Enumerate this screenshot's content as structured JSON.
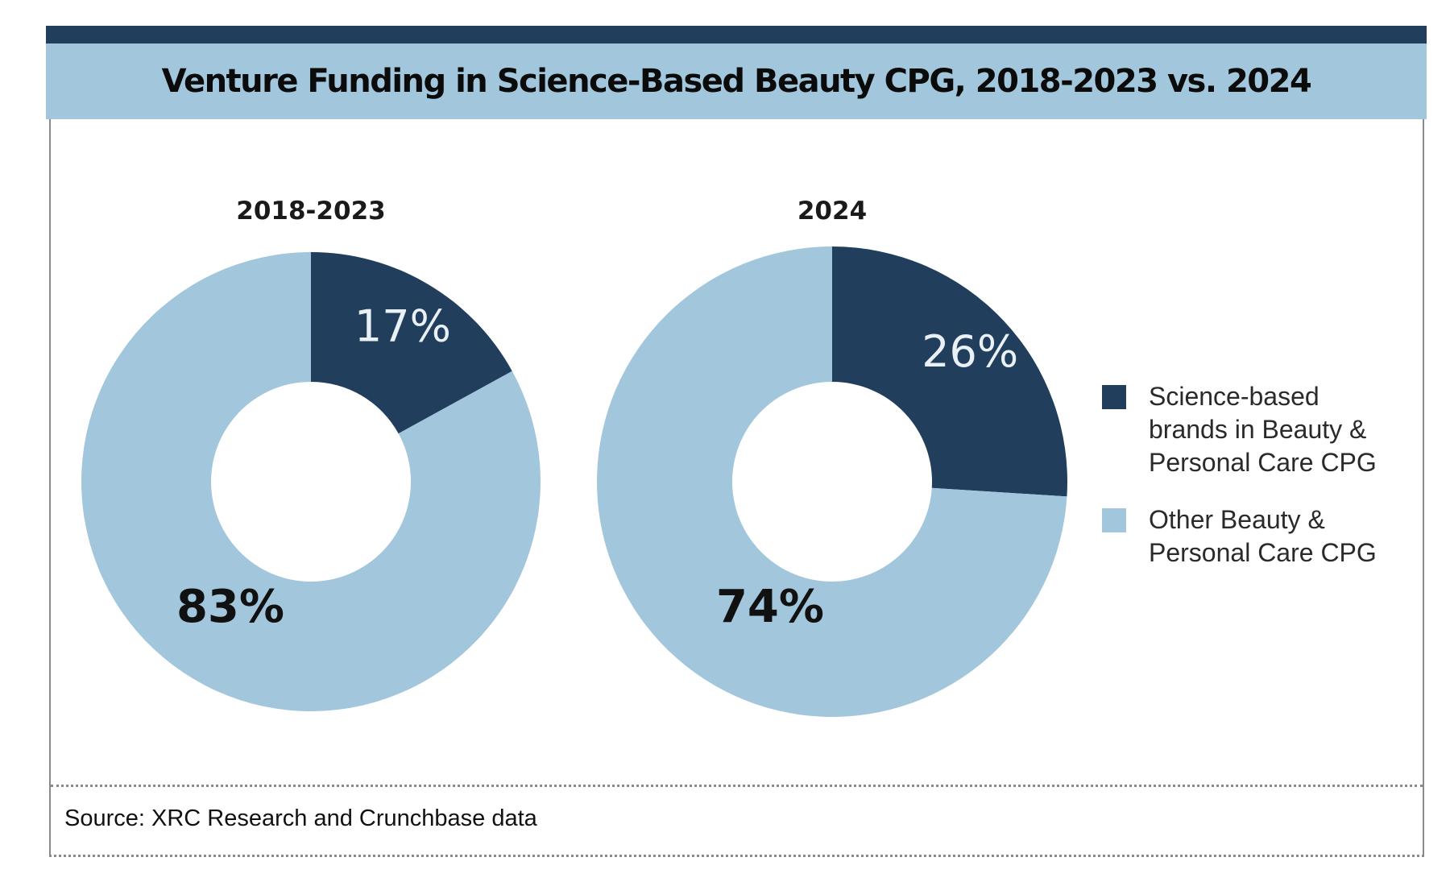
{
  "header": {
    "title": "Venture Funding in Science-Based Beauty CPG, 2018-2023 vs. 2024"
  },
  "footer": {
    "source": "Source: XRC Research and Crunchbase data"
  },
  "colors": {
    "top_bar": "#213f5c",
    "title_band": "#a2c6dc",
    "science_based": "#213f5c",
    "other": "#a2c6dc"
  },
  "legend": {
    "placement": "right",
    "items": [
      {
        "label": "Science-based brands in Beauty & Personal Care CPG",
        "color": "#213f5c"
      },
      {
        "label": "Other Beauty & Personal Care CPG",
        "color": "#a2c6dc"
      }
    ]
  },
  "chart_data": [
    {
      "type": "pie",
      "variant": "donut",
      "title": "2018-2023",
      "slices": [
        {
          "label": "Science-based brands in Beauty & Personal Care CPG",
          "value": 17,
          "display": "17%",
          "color": "#213f5c"
        },
        {
          "label": "Other Beauty & Personal Care CPG",
          "value": 83,
          "display": "83%",
          "color": "#a2c6dc"
        }
      ]
    },
    {
      "type": "pie",
      "variant": "donut",
      "title": "2024",
      "slices": [
        {
          "label": "Science-based brands in Beauty & Personal Care CPG",
          "value": 26,
          "display": "26%",
          "color": "#213f5c"
        },
        {
          "label": "Other Beauty & Personal Care CPG",
          "value": 74,
          "display": "74%",
          "color": "#a2c6dc"
        }
      ]
    }
  ]
}
